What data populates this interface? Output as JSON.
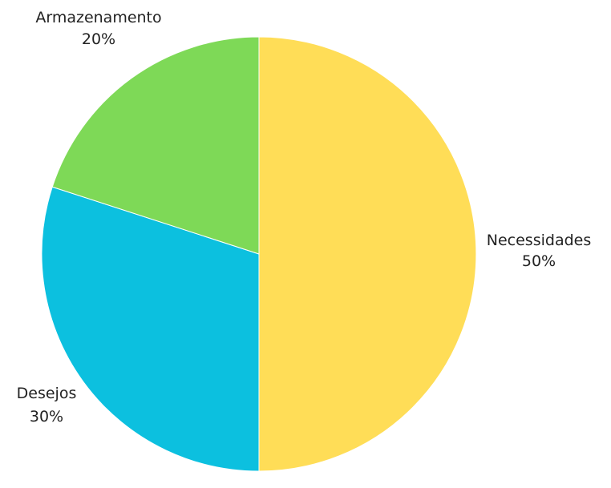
{
  "chart_data": {
    "type": "pie",
    "slices": [
      {
        "label": "Necessidades",
        "value": 50,
        "value_label": "50%",
        "color": "#FFDD57"
      },
      {
        "label": "Desejos",
        "value": 30,
        "value_label": "30%",
        "color": "#0CC0DF"
      },
      {
        "label": "Armazenamento",
        "value": 20,
        "value_label": "20%",
        "color": "#7ED957"
      }
    ],
    "start_angle": "12 o'clock",
    "direction": "clockwise",
    "legend": "none",
    "labels": "outside"
  }
}
